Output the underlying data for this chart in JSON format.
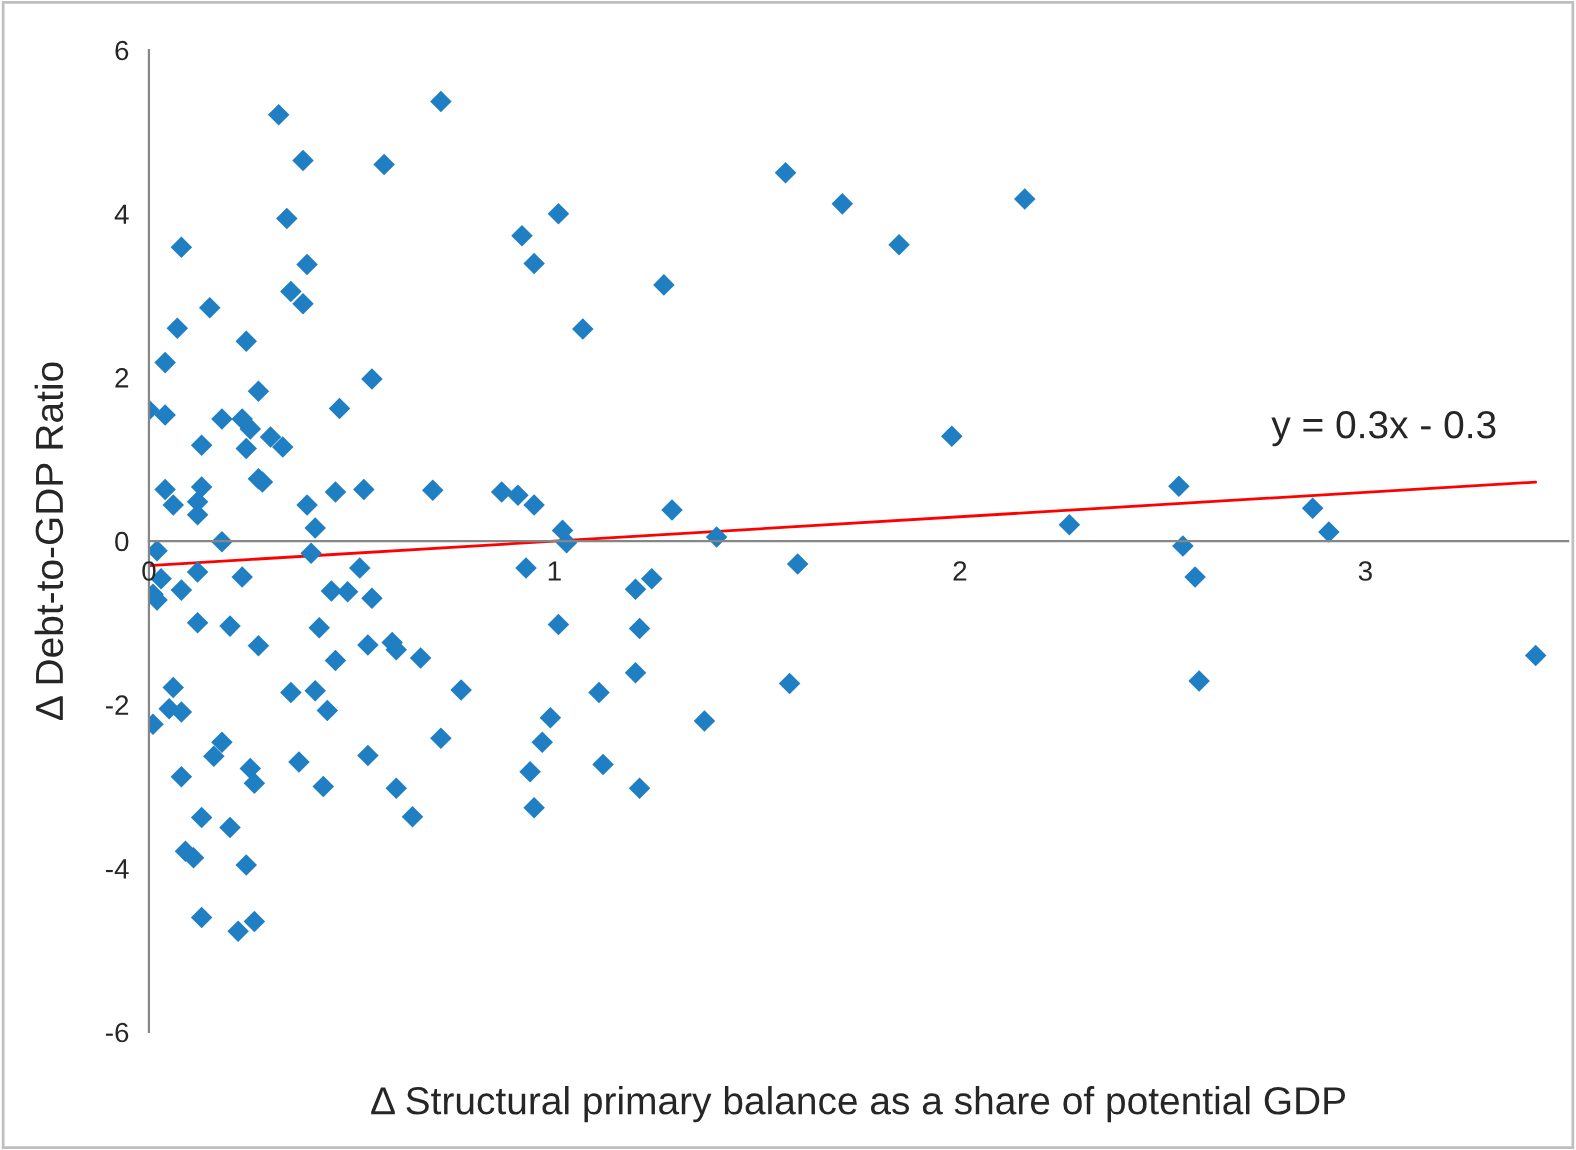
{
  "chart_data": {
    "type": "scatter",
    "xlabel": "Δ Structural primary balance as a share of potential GDP",
    "ylabel": "Δ Debt-to-GDP Ratio",
    "annotations": [
      "y = 0.3x - 0.3"
    ],
    "xlim": [
      0,
      3.5
    ],
    "ylim": [
      -6,
      6
    ],
    "xticks": [
      0,
      1,
      2,
      3
    ],
    "yticks": [
      -6,
      -4,
      -2,
      0,
      2,
      4,
      6
    ],
    "grid": false,
    "legend": false,
    "series": [
      {
        "color": "#1f7fc2",
        "marker": "diamond",
        "x": [
          0.72,
          0.32,
          0.38,
          0.58,
          1.57,
          2.16,
          1.71,
          1.01,
          0.34,
          0.08,
          0.92,
          1.85,
          0.39,
          0.95,
          0.35,
          1.27,
          0.38,
          0.15,
          0.07,
          1.07,
          0.24,
          0.04,
          0.55,
          0.27,
          0.47,
          0.0,
          0.04,
          0.18,
          0.23,
          1.98,
          0.25,
          0.3,
          0.13,
          0.24,
          0.33,
          0.27,
          0.28,
          0.04,
          0.13,
          0.46,
          0.53,
          0.7,
          0.87,
          0.91,
          2.54,
          0.06,
          0.12,
          0.39,
          0.95,
          1.29,
          0.12,
          2.87,
          0.41,
          1.02,
          2.27,
          2.91,
          1.4,
          0.18,
          1.03,
          0.02,
          2.55,
          0.4,
          1.6,
          0.52,
          0.93,
          0.12,
          0.03,
          0.23,
          2.58,
          1.24,
          0.01,
          0.02,
          0.08,
          0.45,
          0.49,
          1.2,
          0.55,
          0.12,
          0.2,
          0.42,
          1.01,
          1.21,
          0.27,
          0.54,
          0.46,
          0.6,
          0.61,
          0.67,
          1.2,
          3.42,
          1.58,
          2.59,
          0.06,
          0.35,
          0.41,
          0.77,
          1.11,
          0.05,
          0.08,
          0.44,
          0.99,
          1.37,
          0.01,
          0.97,
          0.72,
          0.18,
          0.16,
          0.37,
          0.54,
          1.12,
          0.08,
          0.25,
          0.94,
          0.26,
          0.43,
          0.61,
          1.21,
          0.95,
          0.13,
          0.65,
          0.2,
          0.09,
          0.11,
          0.24,
          0.13,
          0.26,
          0.22
        ],
        "values": [
          5.37,
          5.21,
          4.65,
          4.6,
          4.5,
          4.18,
          4.12,
          4.0,
          3.94,
          3.59,
          3.73,
          3.62,
          3.38,
          3.39,
          3.05,
          3.13,
          2.9,
          2.85,
          2.6,
          2.59,
          2.44,
          2.18,
          1.98,
          1.83,
          1.62,
          1.6,
          1.54,
          1.49,
          1.49,
          1.28,
          1.37,
          1.27,
          1.17,
          1.13,
          1.15,
          0.76,
          0.72,
          0.63,
          0.66,
          0.6,
          0.63,
          0.62,
          0.6,
          0.56,
          0.67,
          0.44,
          0.48,
          0.44,
          0.44,
          0.38,
          0.32,
          0.4,
          0.16,
          0.13,
          0.2,
          0.11,
          0.05,
          -0.01,
          -0.02,
          -0.12,
          -0.06,
          -0.15,
          -0.28,
          -0.33,
          -0.33,
          -0.38,
          -0.46,
          -0.44,
          -0.44,
          -0.46,
          -0.65,
          -0.72,
          -0.6,
          -0.61,
          -0.62,
          -0.59,
          -0.7,
          -1.0,
          -1.04,
          -1.06,
          -1.02,
          -1.07,
          -1.28,
          -1.27,
          -1.46,
          -1.24,
          -1.33,
          -1.43,
          -1.61,
          -1.4,
          -1.74,
          -1.71,
          -1.79,
          -1.85,
          -1.83,
          -1.82,
          -1.85,
          -2.05,
          -2.09,
          -2.07,
          -2.16,
          -2.2,
          -2.24,
          -2.46,
          -2.41,
          -2.46,
          -2.63,
          -2.7,
          -2.62,
          -2.73,
          -2.88,
          -2.78,
          -2.82,
          -2.96,
          -3.0,
          -3.02,
          -3.02,
          -3.26,
          -3.38,
          -3.37,
          -3.5,
          -3.79,
          -3.87,
          -3.96,
          -4.6,
          -4.65,
          -4.77
        ]
      },
      {
        "type": "line",
        "color": "#ff0000",
        "x": [
          0,
          3.42
        ],
        "values": [
          -0.3,
          0.72
        ]
      }
    ]
  }
}
